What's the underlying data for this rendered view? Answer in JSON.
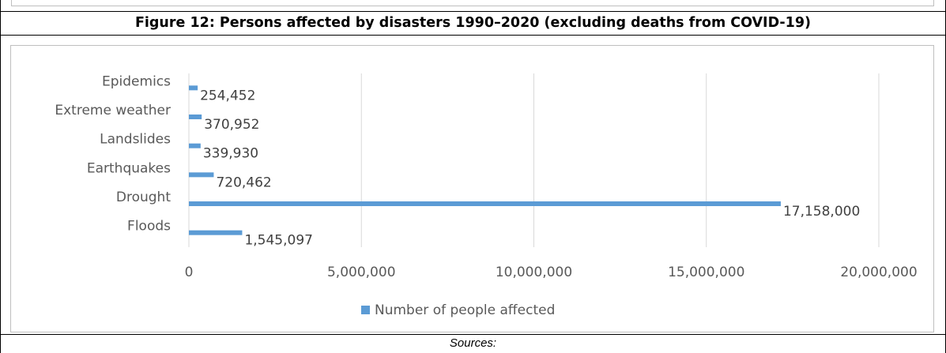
{
  "figure_title": "Figure 12: Persons affected by disasters 1990–2020 (excluding deaths from COVID-19)",
  "sources_label": "Sources:",
  "chart_data": {
    "type": "bar",
    "orientation": "horizontal",
    "categories": [
      "Epidemics",
      "Extreme weather",
      "Landslides",
      "Earthquakes",
      "Drought",
      "Floods"
    ],
    "series": [
      {
        "name": "Number of people affected",
        "values": [
          254452,
          370952,
          339930,
          720462,
          17158000,
          1545097
        ]
      }
    ],
    "value_labels": [
      "254,452",
      "370,952",
      "339,930",
      "720,462",
      "17,158,000",
      "1,545,097"
    ],
    "xlim": [
      0,
      20000000
    ],
    "x_ticks": [
      0,
      5000000,
      10000000,
      15000000,
      20000000
    ],
    "x_tick_labels": [
      "0",
      "5,000,000",
      "10,000,000",
      "15,000,000",
      "20,000,000"
    ],
    "grid": "vertical",
    "legend_position": "bottom",
    "bar_color": "#5b9bd5"
  }
}
